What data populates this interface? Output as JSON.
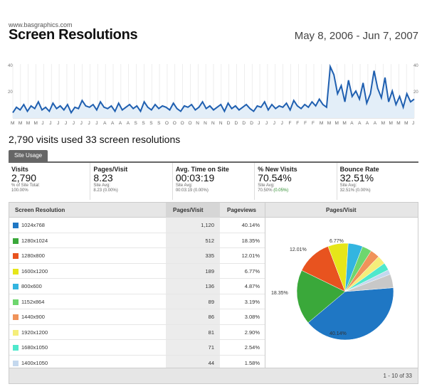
{
  "header": {
    "site": "www.basgraphics.com",
    "title": "Screen Resolutions",
    "date_range": "May 8, 2006 - Jun 7, 2007"
  },
  "chart_data": {
    "type": "line",
    "ylim": [
      0,
      40
    ],
    "y_ticks": [
      "40",
      "20"
    ],
    "x_ticks": [
      "M",
      "M",
      "M",
      "M",
      "J",
      "J",
      "J",
      "J",
      "J",
      "J",
      "J",
      "J",
      "A",
      "A",
      "A",
      "A",
      "S",
      "S",
      "S",
      "S",
      "O",
      "O",
      "O",
      "O",
      "N",
      "N",
      "N",
      "N",
      "D",
      "D",
      "D",
      "D",
      "J",
      "J",
      "J",
      "J",
      "F",
      "F",
      "F",
      "F",
      "M",
      "M",
      "M",
      "M",
      "A",
      "A",
      "A",
      "A",
      "M",
      "M",
      "M",
      "M",
      "J"
    ],
    "series": [
      {
        "values": [
          4,
          8,
          6,
          10,
          5,
          9,
          7,
          12,
          6,
          8,
          5,
          11,
          7,
          9,
          6,
          10,
          4,
          8,
          7,
          13,
          9,
          8,
          10,
          6,
          12,
          8,
          7,
          9,
          5,
          11,
          6,
          8,
          10,
          7,
          9,
          5,
          12,
          8,
          6,
          10,
          7,
          9,
          8,
          6,
          11,
          7,
          5,
          9,
          8,
          10,
          6,
          8,
          12,
          7,
          9,
          6,
          8,
          10,
          5,
          11,
          7,
          9,
          6,
          8,
          10,
          7,
          5,
          9,
          8,
          12,
          6,
          10,
          7,
          9,
          8,
          11,
          6,
          13,
          9,
          7,
          10,
          8,
          12,
          9,
          14,
          10,
          8,
          38,
          32,
          18,
          24,
          12,
          28,
          16,
          20,
          14,
          26,
          11,
          18,
          35,
          22,
          15,
          30,
          12,
          20,
          10,
          16,
          8,
          18,
          12,
          14
        ]
      }
    ]
  },
  "summary": "2,790 visits used 33 screen resolutions",
  "tab": "Site Usage",
  "metrics": [
    {
      "label": "Visits",
      "value": "2,790",
      "sub1": "% of Site Total:",
      "sub2": "100.00%",
      "sub2_green": ""
    },
    {
      "label": "Pages/Visit",
      "value": "8.23",
      "sub1": "Site Avg:",
      "sub2": "8.23 (0.00%)",
      "sub2_green": ""
    },
    {
      "label": "Avg. Time on Site",
      "value": "00:03:19",
      "sub1": "Site Avg:",
      "sub2": "00:03:19 (0.00%)",
      "sub2_green": ""
    },
    {
      "label": "% New Visits",
      "value": "70.54%",
      "sub1": "Site Avg:",
      "sub2": "70.50% ",
      "sub2_green": "(0.05%)"
    },
    {
      "label": "Bounce Rate",
      "value": "32.51%",
      "sub1": "Site Avg:",
      "sub2": "32.51% (0.00%)",
      "sub2_green": ""
    }
  ],
  "table": {
    "col_resolution": "Screen Resolution",
    "col_pages_visit": "Pages/Visit",
    "col_pageviews": "Pageviews",
    "col_chart": "Pages/Visit",
    "footer": "1 - 10 of 33",
    "rows": [
      {
        "name": "1024x768",
        "pages": "1,120",
        "pct": "40.14%",
        "color": "#1f77c4"
      },
      {
        "name": "1280x1024",
        "pages": "512",
        "pct": "18.35%",
        "color": "#3aa83a"
      },
      {
        "name": "1280x800",
        "pages": "335",
        "pct": "12.01%",
        "color": "#e8531f"
      },
      {
        "name": "1600x1200",
        "pages": "189",
        "pct": "6.77%",
        "color": "#e6e619"
      },
      {
        "name": "800x600",
        "pages": "136",
        "pct": "4.87%",
        "color": "#33b5e0"
      },
      {
        "name": "1152x864",
        "pages": "89",
        "pct": "3.19%",
        "color": "#6ed66e"
      },
      {
        "name": "1440x900",
        "pages": "86",
        "pct": "3.08%",
        "color": "#f0935a"
      },
      {
        "name": "1920x1200",
        "pages": "81",
        "pct": "2.90%",
        "color": "#f5ee7a"
      },
      {
        "name": "1680x1050",
        "pages": "71",
        "pct": "2.54%",
        "color": "#4fe8cc"
      },
      {
        "name": "1400x1050",
        "pages": "44",
        "pct": "1.58%",
        "color": "#c4d8ee"
      }
    ],
    "pie_other_color": "#c8c8c8",
    "pie_labels": [
      "40.14%",
      "18.35%",
      "12.01%",
      "6.77%"
    ]
  }
}
